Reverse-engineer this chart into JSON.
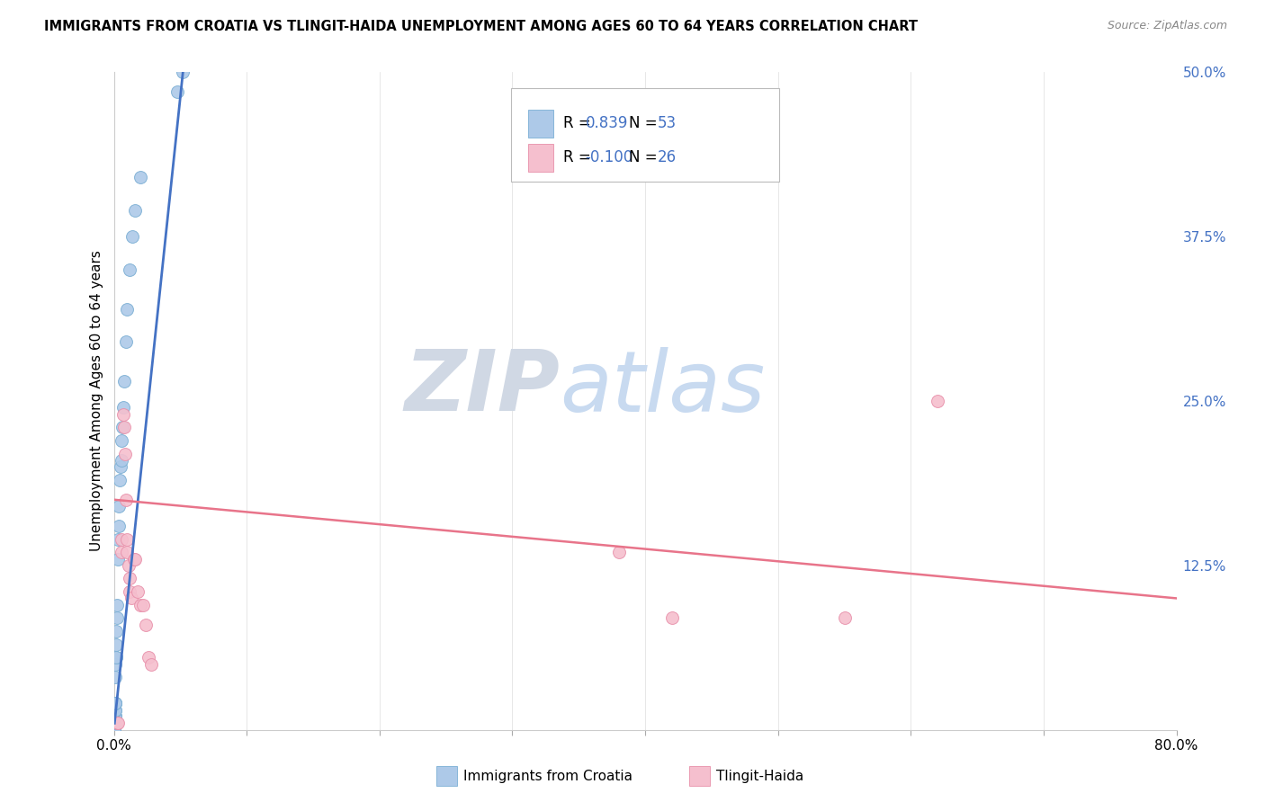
{
  "title": "IMMIGRANTS FROM CROATIA VS TLINGIT-HAIDA UNEMPLOYMENT AMONG AGES 60 TO 64 YEARS CORRELATION CHART",
  "source": "Source: ZipAtlas.com",
  "ylabel": "Unemployment Among Ages 60 to 64 years",
  "xlim": [
    0,
    0.8
  ],
  "ylim": [
    0,
    0.5
  ],
  "xticks": [
    0.0,
    0.1,
    0.2,
    0.3,
    0.4,
    0.5,
    0.6,
    0.7,
    0.8
  ],
  "yticks": [
    0.0,
    0.125,
    0.25,
    0.375,
    0.5
  ],
  "yticklabels": [
    "",
    "12.5%",
    "25.0%",
    "37.5%",
    "50.0%"
  ],
  "series1_color": "#adc9e8",
  "series1_edge": "#7bafd4",
  "series2_color": "#f5bfce",
  "series2_edge": "#e890aa",
  "trendline1_color": "#4472c4",
  "trendline2_color": "#e8748a",
  "watermark_ZIP": "ZIP",
  "watermark_atlas": "atlas",
  "watermark_ZIP_color": "#d0d8e4",
  "watermark_atlas_color": "#c8daf0",
  "croatia_x": [
    0.0005,
    0.0005,
    0.0005,
    0.0005,
    0.0005,
    0.0005,
    0.0005,
    0.0005,
    0.0005,
    0.0005,
    0.0005,
    0.0005,
    0.0005,
    0.0005,
    0.0005,
    0.0008,
    0.0008,
    0.0008,
    0.0008,
    0.0008,
    0.0008,
    0.001,
    0.001,
    0.001,
    0.001,
    0.001,
    0.0012,
    0.0012,
    0.0015,
    0.0015,
    0.0018,
    0.002,
    0.0022,
    0.0025,
    0.003,
    0.0032,
    0.0035,
    0.004,
    0.0045,
    0.005,
    0.0055,
    0.006,
    0.0065,
    0.007,
    0.008,
    0.009,
    0.01,
    0.012,
    0.014,
    0.016,
    0.02,
    0.048,
    0.052
  ],
  "croatia_y": [
    0.0,
    0.0,
    0.0,
    0.0,
    0.0,
    0.0,
    0.0,
    0.0,
    0.0,
    0.0,
    0.0,
    0.0,
    0.005,
    0.005,
    0.01,
    0.01,
    0.01,
    0.01,
    0.01,
    0.01,
    0.015,
    0.015,
    0.02,
    0.02,
    0.02,
    0.02,
    0.04,
    0.05,
    0.055,
    0.055,
    0.065,
    0.075,
    0.085,
    0.095,
    0.13,
    0.145,
    0.155,
    0.17,
    0.19,
    0.2,
    0.205,
    0.22,
    0.23,
    0.245,
    0.265,
    0.295,
    0.32,
    0.35,
    0.375,
    0.395,
    0.42,
    0.485,
    0.5
  ],
  "tlingit_x": [
    0.0025,
    0.003,
    0.0055,
    0.006,
    0.007,
    0.008,
    0.0085,
    0.009,
    0.0095,
    0.01,
    0.011,
    0.0115,
    0.012,
    0.013,
    0.015,
    0.016,
    0.018,
    0.02,
    0.022,
    0.024,
    0.026,
    0.028,
    0.38,
    0.42,
    0.55,
    0.62
  ],
  "tlingit_y": [
    0.005,
    0.005,
    0.135,
    0.145,
    0.24,
    0.23,
    0.21,
    0.175,
    0.145,
    0.135,
    0.125,
    0.115,
    0.105,
    0.1,
    0.13,
    0.13,
    0.105,
    0.095,
    0.095,
    0.08,
    0.055,
    0.05,
    0.135,
    0.085,
    0.085,
    0.25
  ],
  "trendline1_x": [
    0.0005,
    0.052
  ],
  "trendline1_y": [
    0.005,
    0.5
  ],
  "trendline2_x": [
    0.0,
    0.8
  ],
  "trendline2_y": [
    0.175,
    0.1
  ]
}
